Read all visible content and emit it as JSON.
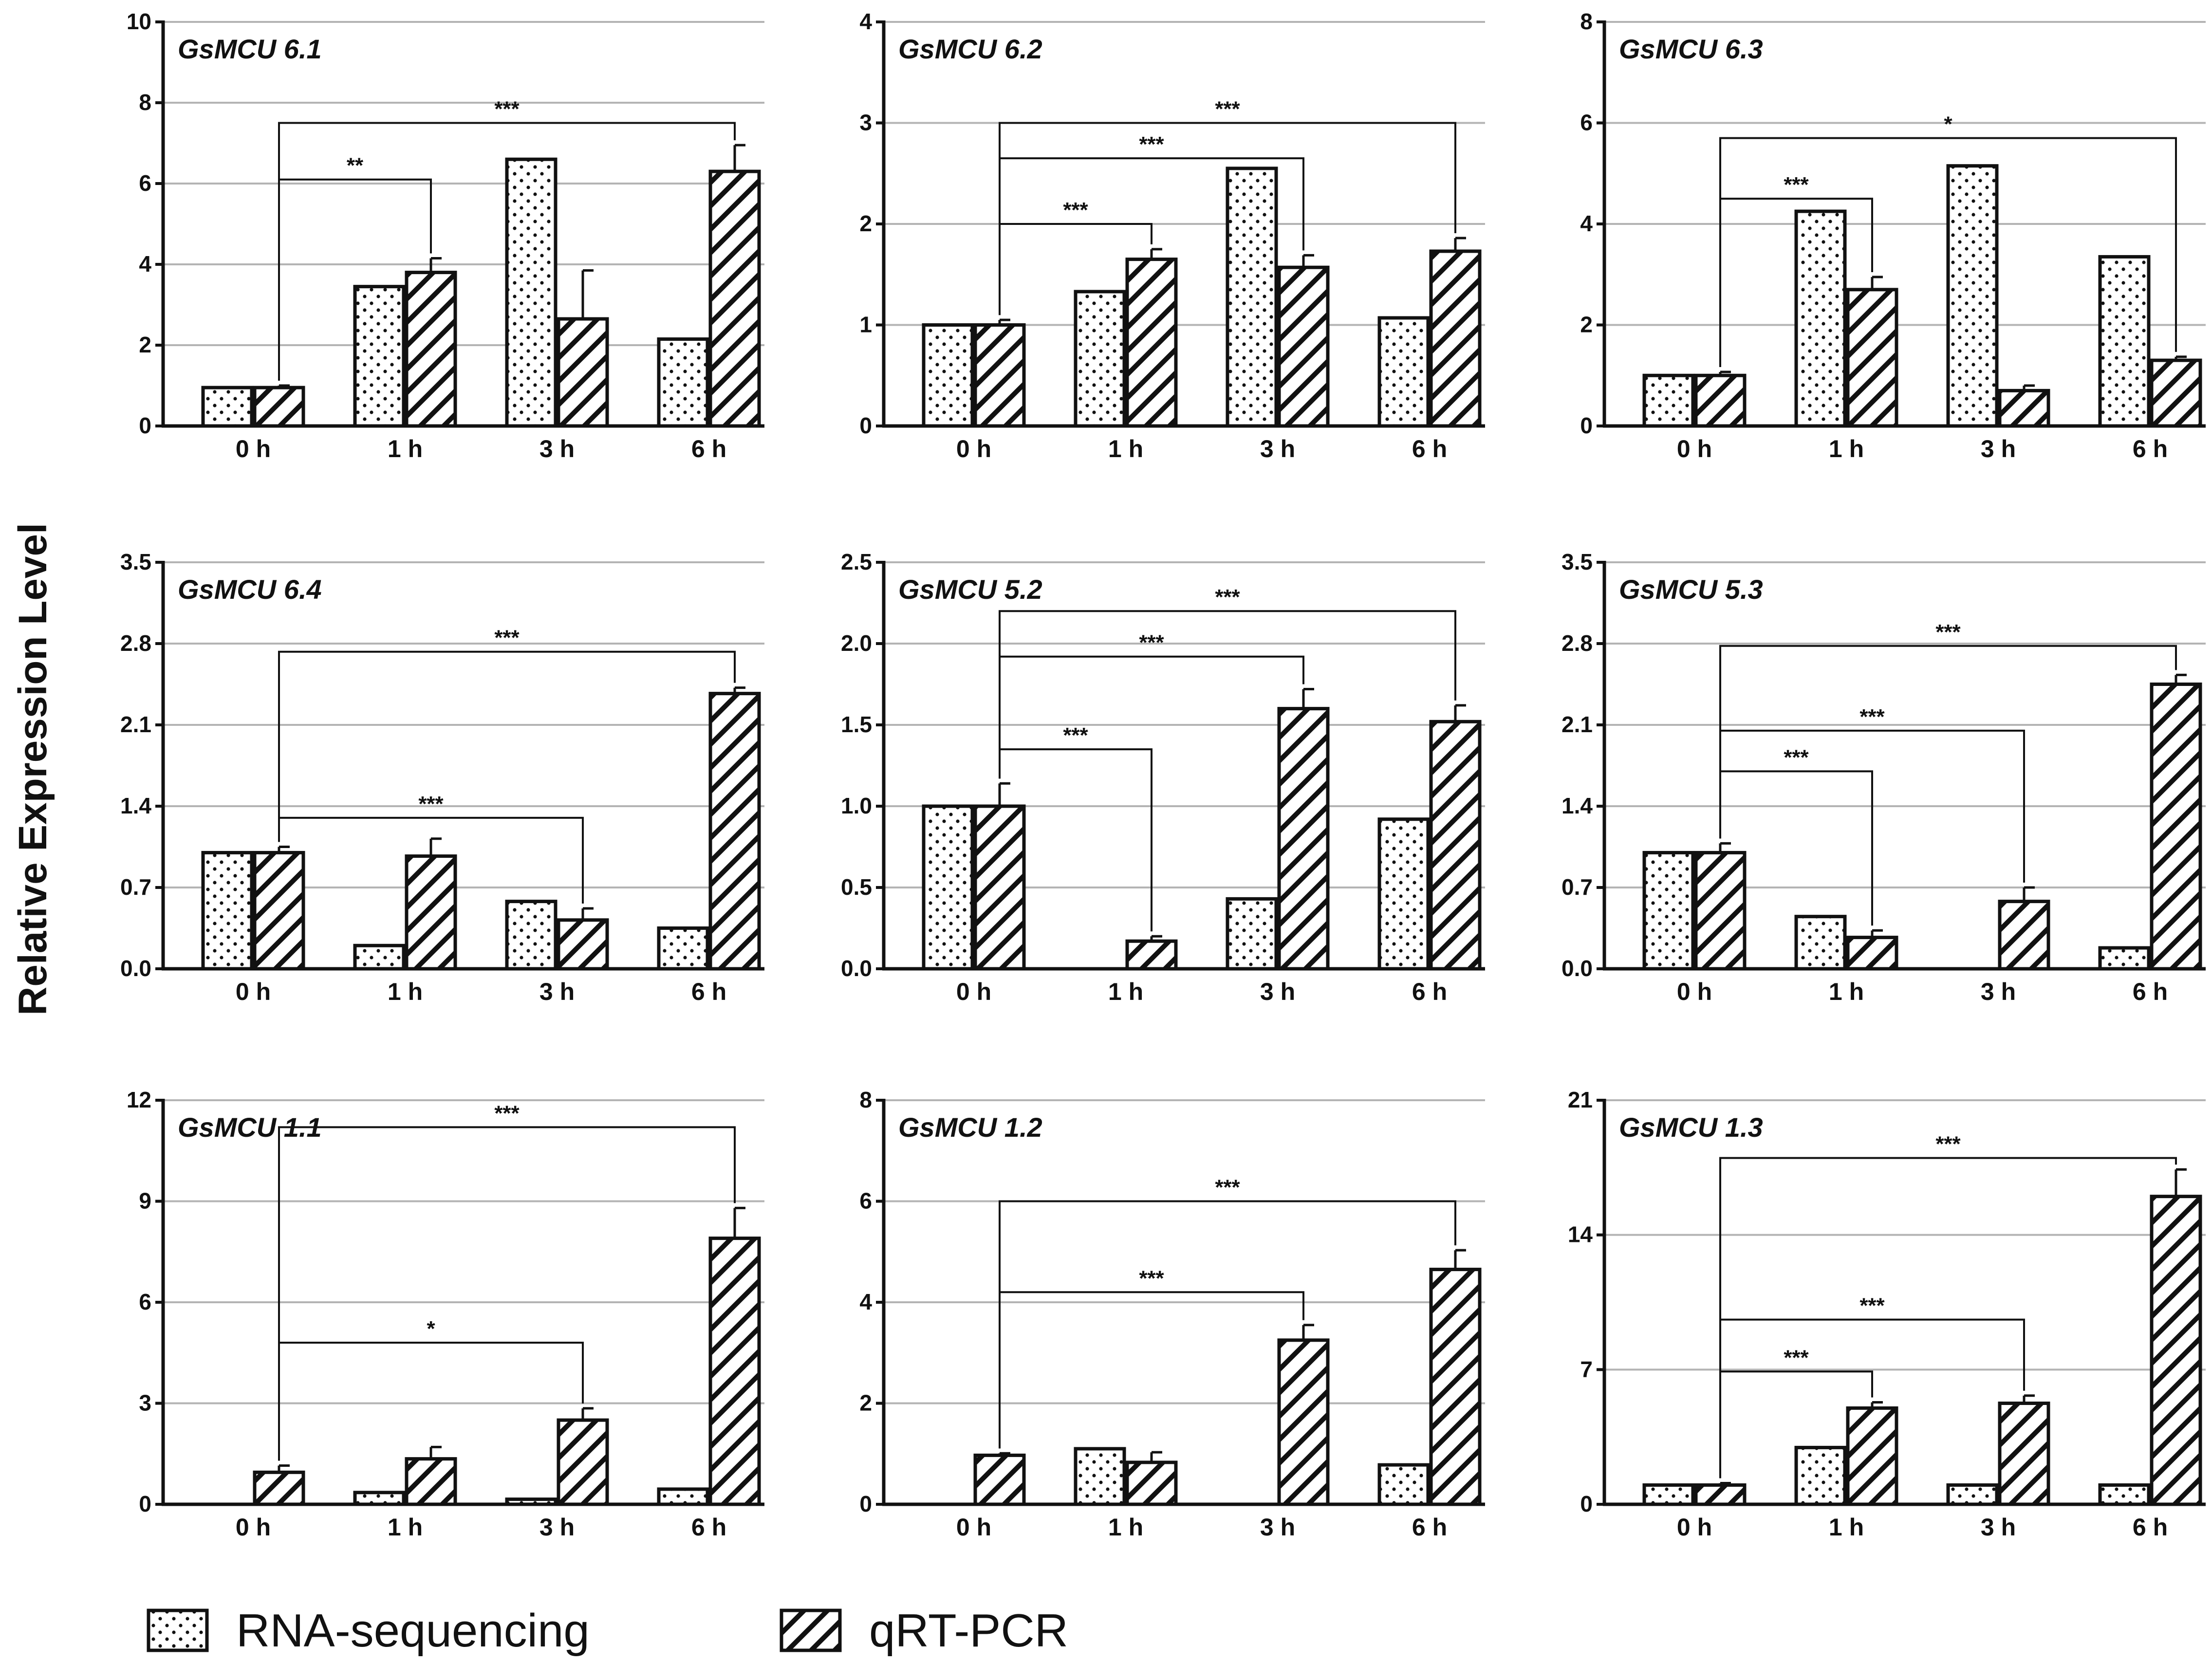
{
  "y_axis_title": "Relative Expression Level",
  "legend": [
    {
      "label": "RNA-sequencing",
      "pattern": "dots"
    },
    {
      "label": "qRT-PCR",
      "pattern": "hatch"
    }
  ],
  "chart_data": [
    {
      "type": "bar",
      "title": "GsMCU 6.1",
      "categories": [
        "0 h",
        "1 h",
        "3 h",
        "6 h"
      ],
      "yticks": [
        "0",
        "2",
        "4",
        "6",
        "8",
        "10"
      ],
      "ylim": [
        0,
        10
      ],
      "series": [
        {
          "name": "RNA-sequencing",
          "values": [
            0.95,
            3.45,
            6.6,
            2.15
          ]
        },
        {
          "name": "qRT-PCR",
          "values": [
            0.95,
            3.8,
            2.65,
            6.3
          ],
          "errors": [
            0.05,
            0.35,
            1.2,
            0.65
          ]
        }
      ],
      "sig": [
        {
          "from": 0,
          "to": 1,
          "label": "**",
          "level": 6.1
        },
        {
          "from": 0,
          "to": 3,
          "label": "***",
          "level": 7.5
        }
      ]
    },
    {
      "type": "bar",
      "title": "GsMCU 6.2",
      "categories": [
        "0 h",
        "1 h",
        "3 h",
        "6 h"
      ],
      "yticks": [
        "0",
        "1",
        "2",
        "3",
        "4"
      ],
      "ylim": [
        0,
        4
      ],
      "series": [
        {
          "name": "RNA-sequencing",
          "values": [
            1.0,
            1.33,
            2.55,
            1.07
          ]
        },
        {
          "name": "qRT-PCR",
          "values": [
            1.0,
            1.65,
            1.57,
            1.73
          ],
          "errors": [
            0.05,
            0.1,
            0.12,
            0.13
          ]
        }
      ],
      "sig": [
        {
          "from": 0,
          "to": 1,
          "label": "***",
          "level": 2.0
        },
        {
          "from": 0,
          "to": 2,
          "label": "***",
          "level": 2.65
        },
        {
          "from": 0,
          "to": 3,
          "label": "***",
          "level": 3.0
        }
      ]
    },
    {
      "type": "bar",
      "title": "GsMCU 6.3",
      "categories": [
        "0 h",
        "1 h",
        "3 h",
        "6 h"
      ],
      "yticks": [
        "0",
        "2",
        "4",
        "6",
        "8"
      ],
      "ylim": [
        0,
        8
      ],
      "series": [
        {
          "name": "RNA-sequencing",
          "values": [
            1.0,
            4.25,
            5.15,
            3.35
          ]
        },
        {
          "name": "qRT-PCR",
          "values": [
            1.0,
            2.7,
            0.7,
            1.3
          ],
          "errors": [
            0.07,
            0.25,
            0.1,
            0.07
          ]
        }
      ],
      "sig": [
        {
          "from": 0,
          "to": 1,
          "label": "***",
          "level": 4.5
        },
        {
          "from": 0,
          "to": 3,
          "label": "*",
          "level": 5.7
        }
      ]
    },
    {
      "type": "bar",
      "title": "GsMCU 6.4",
      "categories": [
        "0 h",
        "1 h",
        "3 h",
        "6 h"
      ],
      "yticks": [
        "0.0",
        "0.7",
        "1.4",
        "2.1",
        "2.8",
        "3.5"
      ],
      "ylim": [
        0,
        3.5
      ],
      "series": [
        {
          "name": "RNA-sequencing",
          "values": [
            1.0,
            0.2,
            0.58,
            0.35
          ]
        },
        {
          "name": "qRT-PCR",
          "values": [
            1.0,
            0.97,
            0.42,
            2.37
          ],
          "errors": [
            0.05,
            0.15,
            0.1,
            0.05
          ]
        }
      ],
      "sig": [
        {
          "from": 0,
          "to": 2,
          "label": "***",
          "level": 1.3
        },
        {
          "from": 0,
          "to": 3,
          "label": "***",
          "level": 2.73
        }
      ]
    },
    {
      "type": "bar",
      "title": "GsMCU 5.2",
      "categories": [
        "0 h",
        "1 h",
        "3 h",
        "6 h"
      ],
      "yticks": [
        "0.0",
        "0.5",
        "1.0",
        "1.5",
        "2.0",
        "2.5"
      ],
      "ylim": [
        0,
        2.5
      ],
      "series": [
        {
          "name": "RNA-sequencing",
          "values": [
            1.0,
            0.0,
            0.43,
            0.92
          ]
        },
        {
          "name": "qRT-PCR",
          "values": [
            1.0,
            0.17,
            1.6,
            1.52
          ],
          "errors": [
            0.14,
            0.03,
            0.12,
            0.1
          ]
        }
      ],
      "sig": [
        {
          "from": 0,
          "to": 1,
          "label": "***",
          "level": 1.35
        },
        {
          "from": 0,
          "to": 2,
          "label": "***",
          "level": 1.92
        },
        {
          "from": 0,
          "to": 3,
          "label": "***",
          "level": 2.2
        }
      ]
    },
    {
      "type": "bar",
      "title": "GsMCU 5.3",
      "categories": [
        "0 h",
        "1 h",
        "3 h",
        "6 h"
      ],
      "yticks": [
        "0.0",
        "0.7",
        "1.4",
        "2.1",
        "2.8",
        "3.5"
      ],
      "ylim": [
        0,
        3.5
      ],
      "series": [
        {
          "name": "RNA-sequencing",
          "values": [
            1.0,
            0.45,
            0.0,
            0.18
          ]
        },
        {
          "name": "qRT-PCR",
          "values": [
            1.0,
            0.27,
            0.58,
            2.45
          ],
          "errors": [
            0.08,
            0.06,
            0.12,
            0.08
          ]
        }
      ],
      "sig": [
        {
          "from": 0,
          "to": 1,
          "label": "***",
          "level": 1.7
        },
        {
          "from": 0,
          "to": 2,
          "label": "***",
          "level": 2.05
        },
        {
          "from": 0,
          "to": 3,
          "label": "***",
          "level": 2.78
        }
      ]
    },
    {
      "type": "bar",
      "title": "GsMCU 1.1",
      "categories": [
        "0 h",
        "1 h",
        "3 h",
        "6 h"
      ],
      "yticks": [
        "0",
        "3",
        "6",
        "9",
        "12"
      ],
      "ylim": [
        0,
        12
      ],
      "series": [
        {
          "name": "RNA-sequencing",
          "values": [
            0.0,
            0.35,
            0.15,
            0.45
          ]
        },
        {
          "name": "qRT-PCR",
          "values": [
            0.95,
            1.35,
            2.5,
            7.9
          ],
          "errors": [
            0.2,
            0.35,
            0.35,
            0.9
          ]
        }
      ],
      "sig": [
        {
          "from": 0,
          "to": 2,
          "label": "*",
          "level": 4.8
        },
        {
          "from": 0,
          "to": 3,
          "label": "***",
          "level": 11.2
        }
      ]
    },
    {
      "type": "bar",
      "title": "GsMCU 1.2",
      "categories": [
        "0 h",
        "1 h",
        "3 h",
        "6 h"
      ],
      "yticks": [
        "0",
        "2",
        "4",
        "6",
        "8"
      ],
      "ylim": [
        0,
        8
      ],
      "series": [
        {
          "name": "RNA-sequencing",
          "values": [
            0.0,
            1.1,
            0.0,
            0.78
          ]
        },
        {
          "name": "qRT-PCR",
          "values": [
            0.97,
            0.83,
            3.25,
            4.65
          ],
          "errors": [
            0.04,
            0.2,
            0.3,
            0.38
          ]
        }
      ],
      "sig": [
        {
          "from": 0,
          "to": 2,
          "label": "***",
          "level": 4.2
        },
        {
          "from": 0,
          "to": 3,
          "label": "***",
          "level": 6.0
        }
      ]
    },
    {
      "type": "bar",
      "title": "GsMCU 1.3",
      "categories": [
        "0 h",
        "1 h",
        "3 h",
        "6 h"
      ],
      "yticks": [
        "0",
        "7",
        "14",
        "21"
      ],
      "ylim": [
        0,
        21
      ],
      "series": [
        {
          "name": "RNA-sequencing",
          "values": [
            1.0,
            2.95,
            1.0,
            1.0
          ]
        },
        {
          "name": "qRT-PCR",
          "values": [
            1.0,
            5.0,
            5.25,
            16.0
          ],
          "errors": [
            0.1,
            0.3,
            0.4,
            1.4
          ]
        }
      ],
      "sig": [
        {
          "from": 0,
          "to": 1,
          "label": "***",
          "level": 6.9
        },
        {
          "from": 0,
          "to": 2,
          "label": "***",
          "level": 9.6
        },
        {
          "from": 0,
          "to": 3,
          "label": "***",
          "level": 18.0
        }
      ]
    }
  ]
}
